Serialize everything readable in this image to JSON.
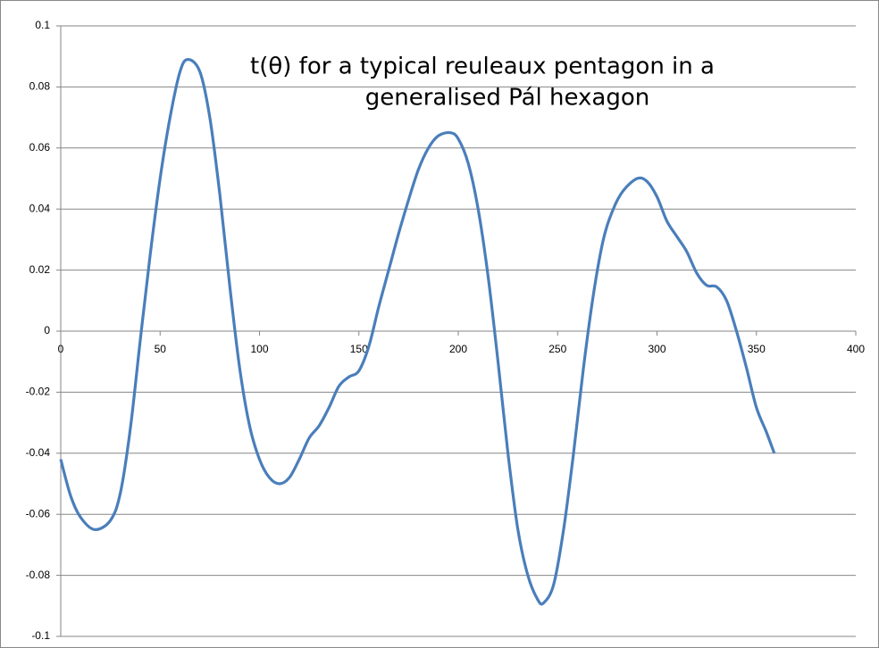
{
  "chart_data": {
    "type": "line",
    "title": [
      "t(θ) for a typical reuleaux pentagon in a",
      "generalised Pál hexagon"
    ],
    "xlim": [
      0,
      400
    ],
    "xticks": [
      0,
      50,
      100,
      150,
      200,
      250,
      300,
      350,
      400
    ],
    "ylim": [
      -0.1,
      0.1
    ],
    "yticks": [
      -0.1,
      -0.08,
      -0.06,
      -0.04,
      -0.02,
      0,
      0.02,
      0.04,
      0.06,
      0.08,
      0.1
    ],
    "grid": true,
    "series": [
      {
        "color": "#4a7ebb",
        "x": [
          0,
          5,
          10,
          17,
          25,
          30,
          35,
          40,
          45,
          50,
          55,
          60,
          64,
          70,
          75,
          80,
          85,
          90,
          95,
          100,
          105,
          110,
          115,
          120,
          125,
          130,
          135,
          140,
          145,
          150,
          155,
          160,
          165,
          170,
          175,
          180,
          185,
          190,
          196,
          200,
          205,
          210,
          215,
          220,
          225,
          230,
          235,
          240,
          243,
          248,
          253,
          258,
          263,
          268,
          273,
          278,
          283,
          290,
          295,
          300,
          305,
          310,
          315,
          320,
          325,
          330,
          335,
          340,
          345,
          350,
          355,
          359
        ],
        "values": [
          -0.042,
          -0.054,
          -0.061,
          -0.065,
          -0.062,
          -0.053,
          -0.032,
          -0.003,
          0.025,
          0.05,
          0.07,
          0.085,
          0.089,
          0.085,
          0.07,
          0.045,
          0.015,
          -0.012,
          -0.031,
          -0.042,
          -0.048,
          -0.05,
          -0.048,
          -0.042,
          -0.035,
          -0.031,
          -0.025,
          -0.018,
          -0.015,
          -0.013,
          -0.005,
          0.008,
          0.02,
          0.032,
          0.043,
          0.053,
          0.06,
          0.064,
          0.065,
          0.063,
          0.055,
          0.04,
          0.018,
          -0.01,
          -0.04,
          -0.065,
          -0.08,
          -0.088,
          -0.089,
          -0.083,
          -0.065,
          -0.04,
          -0.012,
          0.012,
          0.03,
          0.04,
          0.046,
          0.05,
          0.049,
          0.044,
          0.036,
          0.031,
          0.026,
          0.019,
          0.015,
          0.0145,
          0.01,
          0.0,
          -0.012,
          -0.025,
          -0.033,
          -0.04
        ]
      }
    ]
  }
}
